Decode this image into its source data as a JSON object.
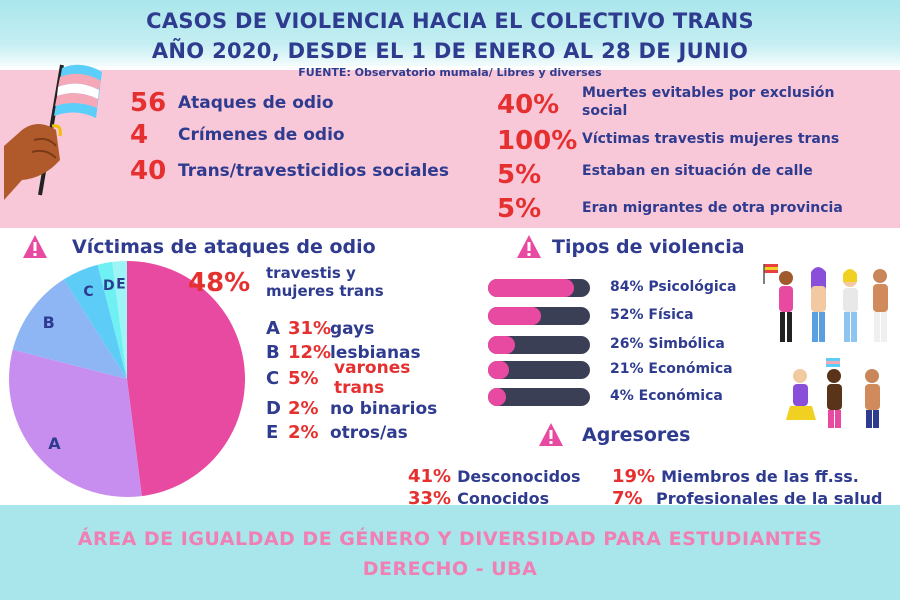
{
  "header": {
    "title_line1": "CASOS DE VIOLENCIA HACIA EL COLECTIVO TRANS",
    "title_line2": "AÑO 2020, DESDE EL 1 DE ENERO AL 28 DE JUNIO",
    "source": "FUENTE: Observatorio mumala/ Libres y diverses"
  },
  "stats_left": [
    {
      "num": "56",
      "label": "Ataques de odio"
    },
    {
      "num": "4",
      "label": "Crímenes de odio"
    },
    {
      "num": "40",
      "label": "Trans/travesticidios sociales"
    }
  ],
  "stats_right": [
    {
      "num": "40%",
      "label_line1": "Muertes evitables por exclusión",
      "label_line2": "social"
    },
    {
      "num": "100%",
      "label_line1": "Víctimas travestis mujeres trans"
    },
    {
      "num": "5%",
      "label_line1": "Estaban en situación de calle"
    },
    {
      "num": "5%",
      "label_line1": "Eran migrantes de otra provincia"
    }
  ],
  "victims": {
    "title": "Víctimas de ataques de odio",
    "main_pct": "48%",
    "main_label_line1": "travestis y",
    "main_label_line2": "mujeres trans",
    "legend": [
      {
        "letter": "A",
        "pct": "31%",
        "label": "gays"
      },
      {
        "letter": "B",
        "pct": "12%",
        "label": "lesbianas"
      },
      {
        "letter": "C",
        "pct": "5%",
        "label_line1": "varones",
        "label_line2": "trans"
      },
      {
        "letter": "D",
        "pct": "2%",
        "label": "no binarios"
      },
      {
        "letter": "E",
        "pct": "2%",
        "label": "otros/as"
      }
    ]
  },
  "chart_data": {
    "type": "pie",
    "categories": [
      "travestis y mujeres trans",
      "A",
      "B",
      "C",
      "D",
      "E"
    ],
    "values": [
      48,
      31,
      12,
      5,
      2,
      2
    ],
    "colors": [
      "#e94aa1",
      "#c78ef0",
      "#8eb6f5",
      "#5dcdf7",
      "#6ff0f2",
      "#9ef4f6"
    ]
  },
  "violence": {
    "title": "Tipos de violencia",
    "items": [
      {
        "label": "84% Psicológica",
        "value": 84
      },
      {
        "label": "52% Física",
        "value": 52
      },
      {
        "label": "26% Simbólica",
        "value": 26
      },
      {
        "label": "21% Económica",
        "value": 21
      },
      {
        "label": "4% Económica",
        "value": 4
      }
    ]
  },
  "aggressors": {
    "title": "Agresores",
    "items": [
      {
        "pct": "41%",
        "label": "Desconocidos"
      },
      {
        "pct": "33%",
        "label": "Conocidos"
      },
      {
        "pct": "19%",
        "label": "Miembros de las ff.ss."
      },
      {
        "pct": "7%",
        "label": "Profesionales de la salud"
      }
    ]
  },
  "footer": {
    "line1": "ÁREA DE IGUALDAD DE GÉNERO Y DIVERSIDAD PARA ESTUDIANTES",
    "line2": "DERECHO - UBA"
  },
  "colors": {
    "navy": "#2e3b8f",
    "red": "#e63030",
    "pink_band": "#f8c7d8",
    "cyan_band": "#a9e6ec",
    "bar_track": "#3a3f56",
    "bar_fill": "#e94aa1",
    "footer_text": "#f07fb4"
  },
  "icons": [
    "trans-flag-icon",
    "warning-icon",
    "people-illustration-icon"
  ]
}
